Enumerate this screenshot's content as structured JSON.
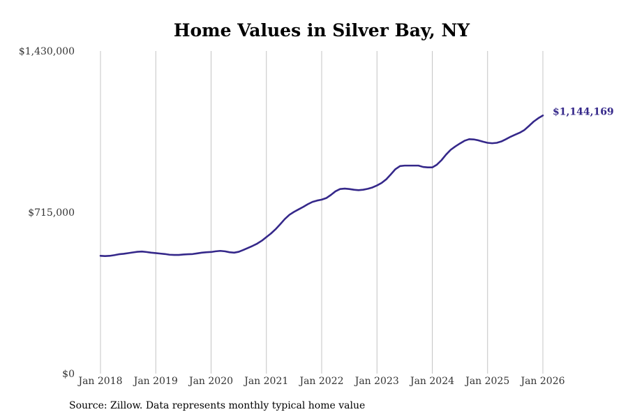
{
  "chart_data": {
    "type": "line",
    "title": "Home Values in Silver Bay, NY",
    "ylim": [
      0,
      1430000
    ],
    "ytick_values": [
      0,
      715000,
      1430000
    ],
    "ytick_labels": [
      "$0",
      "$715,000",
      "$1,430,000"
    ],
    "xtick_values": [
      2018,
      2019,
      2020,
      2021,
      2022,
      2023,
      2024,
      2025,
      2026
    ],
    "xtick_labels": [
      "Jan 2018",
      "Jan 2019",
      "Jan 2020",
      "Jan 2021",
      "Jan 2022",
      "Jan 2023",
      "Jan 2024",
      "Jan 2025",
      "Jan 2026"
    ],
    "xlim": [
      2018,
      2026
    ],
    "series": [
      {
        "name": "Home Value",
        "color": "#35288a",
        "x": [
          2018.0,
          2018.083,
          2018.167,
          2018.25,
          2018.333,
          2018.417,
          2018.5,
          2018.583,
          2018.667,
          2018.75,
          2018.833,
          2018.917,
          2019.0,
          2019.083,
          2019.167,
          2019.25,
          2019.333,
          2019.417,
          2019.5,
          2019.583,
          2019.667,
          2019.75,
          2019.833,
          2019.917,
          2020.0,
          2020.083,
          2020.167,
          2020.25,
          2020.333,
          2020.417,
          2020.5,
          2020.583,
          2020.667,
          2020.75,
          2020.833,
          2020.917,
          2021.0,
          2021.083,
          2021.167,
          2021.25,
          2021.333,
          2021.417,
          2021.5,
          2021.583,
          2021.667,
          2021.75,
          2021.833,
          2021.917,
          2022.0,
          2022.083,
          2022.167,
          2022.25,
          2022.333,
          2022.417,
          2022.5,
          2022.583,
          2022.667,
          2022.75,
          2022.833,
          2022.917,
          2023.0,
          2023.083,
          2023.167,
          2023.25,
          2023.333,
          2023.417,
          2023.5,
          2023.583,
          2023.667,
          2023.75,
          2023.833,
          2023.917,
          2024.0,
          2024.083,
          2024.167,
          2024.25,
          2024.333,
          2024.417,
          2024.5,
          2024.583,
          2024.667,
          2024.75,
          2024.833,
          2024.917,
          2025.0,
          2025.083,
          2025.167,
          2025.25,
          2025.333,
          2025.417,
          2025.5,
          2025.583,
          2025.667,
          2025.75,
          2025.833,
          2025.917,
          2026.0
        ],
        "values": [
          522000,
          521000,
          522000,
          525000,
          529000,
          531000,
          534000,
          537000,
          540000,
          541000,
          539000,
          536000,
          534000,
          532000,
          530000,
          527000,
          526000,
          526000,
          528000,
          529000,
          530000,
          533000,
          536000,
          538000,
          539000,
          542000,
          544000,
          542000,
          538000,
          536000,
          540000,
          548000,
          557000,
          566000,
          576000,
          589000,
          605000,
          621000,
          640000,
          662000,
          685000,
          704000,
          717000,
          728000,
          739000,
          751000,
          761000,
          767000,
          771000,
          778000,
          792000,
          808000,
          818000,
          820000,
          818000,
          815000,
          813000,
          815000,
          819000,
          825000,
          834000,
          845000,
          861000,
          883000,
          906000,
          920000,
          922000,
          922000,
          922000,
          922000,
          916000,
          914000,
          914000,
          926000,
          946000,
          971000,
          992000,
          1007000,
          1020000,
          1032000,
          1039000,
          1038000,
          1034000,
          1028000,
          1023000,
          1021000,
          1023000,
          1029000,
          1039000,
          1050000,
          1059000,
          1068000,
          1080000,
          1098000,
          1117000,
          1132000,
          1144169
        ]
      }
    ],
    "end_label": "$1,144,169",
    "source_text": "Source: Zillow. Data represents monthly typical home value"
  }
}
